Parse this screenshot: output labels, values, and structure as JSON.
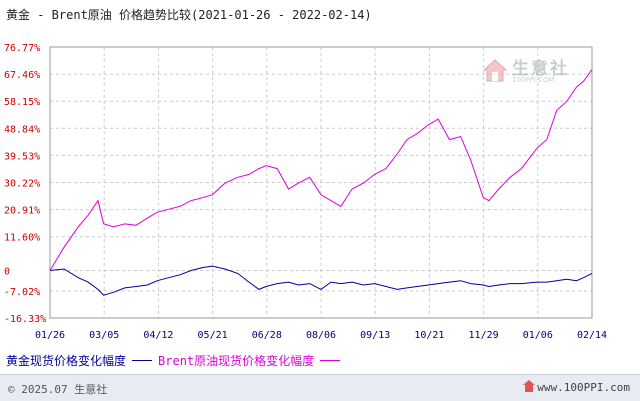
{
  "title": "黄金 - Brent原油 价格趋势比较(2021-01-26 - 2022-02-14)",
  "watermark": {
    "name": "生意社",
    "url": "100PPI.COM"
  },
  "footer": {
    "copyright": "© 2025.07 生意社",
    "site": "www.100PPI.com"
  },
  "colors": {
    "gold": "#000099",
    "brent": "#dd00dd",
    "grid": "#cccccc",
    "ytick": "#cc0000",
    "xtick": "#000080"
  },
  "chart_data": {
    "type": "line",
    "title": "黄金 - Brent原油 价格趋势比较(2021-01-26 - 2022-02-14)",
    "xlabel": "",
    "ylabel": "",
    "ylim": [
      -16.33,
      76.77
    ],
    "y_ticks": [
      "76.77%",
      "67.46%",
      "58.15%",
      "48.84%",
      "39.53%",
      "30.22%",
      "20.91%",
      "11.60%",
      "0",
      "-7.02%",
      "-16.33%"
    ],
    "y_tick_values": [
      76.77,
      67.46,
      58.15,
      48.84,
      39.53,
      30.22,
      20.91,
      11.6,
      0,
      -7.02,
      -16.33
    ],
    "x_ticks": [
      "01/26",
      "03/05",
      "04/12",
      "05/21",
      "06/28",
      "08/06",
      "09/13",
      "10/21",
      "11/29",
      "01/06",
      "02/14"
    ],
    "x": [
      "2021-01-26",
      "2021-02-05",
      "2021-02-15",
      "2021-02-22",
      "2021-03-01",
      "2021-03-05",
      "2021-03-12",
      "2021-03-20",
      "2021-03-28",
      "2021-04-05",
      "2021-04-12",
      "2021-04-20",
      "2021-04-28",
      "2021-05-06",
      "2021-05-14",
      "2021-05-21",
      "2021-05-30",
      "2021-06-08",
      "2021-06-16",
      "2021-06-23",
      "2021-06-28",
      "2021-07-06",
      "2021-07-14",
      "2021-07-21",
      "2021-07-29",
      "2021-08-06",
      "2021-08-13",
      "2021-08-20",
      "2021-08-28",
      "2021-09-05",
      "2021-09-13",
      "2021-09-21",
      "2021-09-29",
      "2021-10-06",
      "2021-10-13",
      "2021-10-21",
      "2021-10-28",
      "2021-11-05",
      "2021-11-13",
      "2021-11-20",
      "2021-11-29",
      "2021-12-03",
      "2021-12-10",
      "2021-12-18",
      "2021-12-26",
      "2022-01-06",
      "2022-01-13",
      "2022-01-20",
      "2022-01-27",
      "2022-02-03",
      "2022-02-08",
      "2022-02-14"
    ],
    "series": [
      {
        "name": "黄金现货价格变化幅度",
        "color": "#000099",
        "values": [
          0.0,
          0.5,
          -2.5,
          -4.0,
          -6.5,
          -8.5,
          -7.5,
          -6.0,
          -5.5,
          -5.0,
          -3.5,
          -2.5,
          -1.5,
          0.0,
          1.0,
          1.5,
          0.5,
          -1.0,
          -4.0,
          -6.5,
          -5.5,
          -4.5,
          -4.0,
          -5.0,
          -4.5,
          -6.5,
          -4.0,
          -4.5,
          -4.0,
          -5.0,
          -4.5,
          -5.5,
          -6.5,
          -6.0,
          -5.5,
          -5.0,
          -4.5,
          -4.0,
          -3.5,
          -4.5,
          -5.0,
          -5.5,
          -5.0,
          -4.5,
          -4.5,
          -4.0,
          -4.0,
          -3.5,
          -3.0,
          -3.5,
          -2.5,
          -1.0
        ]
      },
      {
        "name": "Brent原油现货价格变化幅度",
        "color": "#dd00dd",
        "values": [
          0.0,
          8.0,
          15.0,
          19.0,
          24.0,
          16.0,
          15.0,
          16.0,
          15.5,
          18.0,
          20.0,
          21.0,
          22.0,
          24.0,
          25.0,
          26.0,
          30.0,
          32.0,
          33.0,
          35.0,
          36.0,
          35.0,
          28.0,
          30.0,
          32.0,
          26.0,
          24.0,
          22.0,
          28.0,
          30.0,
          33.0,
          35.0,
          40.0,
          45.0,
          47.0,
          50.0,
          52.0,
          45.0,
          46.0,
          38.0,
          25.0,
          24.0,
          28.0,
          32.0,
          35.0,
          42.0,
          45.0,
          55.0,
          58.0,
          63.0,
          65.0,
          69.0
        ]
      }
    ],
    "legend_position": "bottom-left",
    "grid": true
  }
}
